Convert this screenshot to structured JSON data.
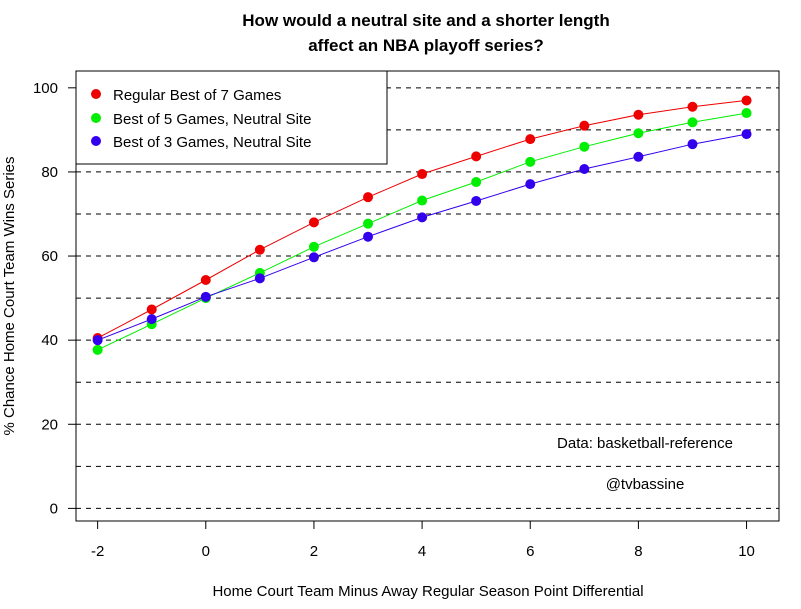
{
  "chart_data": {
    "type": "line",
    "title_line1": "How would a neutral site and a shorter length",
    "title_line2": "affect an NBA playoff series?",
    "xlabel": "Home Court Team Minus Away Regular Season Point Differential",
    "ylabel": "% Chance Home Court Team Wins Series",
    "xlim": [
      -2.4,
      10.6
    ],
    "ylim": [
      -3,
      104
    ],
    "x_ticks": [
      -2,
      0,
      2,
      4,
      6,
      8,
      10
    ],
    "y_ticks": [
      0,
      20,
      40,
      60,
      80,
      100
    ],
    "grid": "horizontal dashed lines every 10",
    "grid_lines": [
      0,
      10,
      20,
      30,
      40,
      50,
      60,
      70,
      80,
      90,
      100
    ],
    "legend_position": "top-left",
    "x": [
      -2,
      -1,
      0,
      1,
      2,
      3,
      4,
      5,
      6,
      7,
      8,
      9,
      10
    ],
    "series": [
      {
        "name": "Regular Best of 7 Games",
        "color": "#ee0000",
        "values": [
          40.5,
          47.3,
          54.3,
          61.5,
          68.0,
          74.0,
          79.5,
          83.7,
          87.8,
          91.0,
          93.6,
          95.5,
          97.0
        ]
      },
      {
        "name": "Best of 5 Games, Neutral Site",
        "color": "#00ee00",
        "values": [
          37.7,
          43.8,
          50.0,
          56.0,
          62.2,
          67.7,
          73.2,
          77.6,
          82.4,
          86.0,
          89.2,
          91.8,
          94.0
        ]
      },
      {
        "name": "Best of 3 Games, Neutral Site",
        "color": "#3300ee",
        "values": [
          40.0,
          45.0,
          50.3,
          54.7,
          59.7,
          64.6,
          69.2,
          73.1,
          77.1,
          80.7,
          83.6,
          86.6,
          89.0
        ]
      }
    ],
    "annotations": [
      "Data: basketball-reference",
      "@tvbassine"
    ]
  }
}
